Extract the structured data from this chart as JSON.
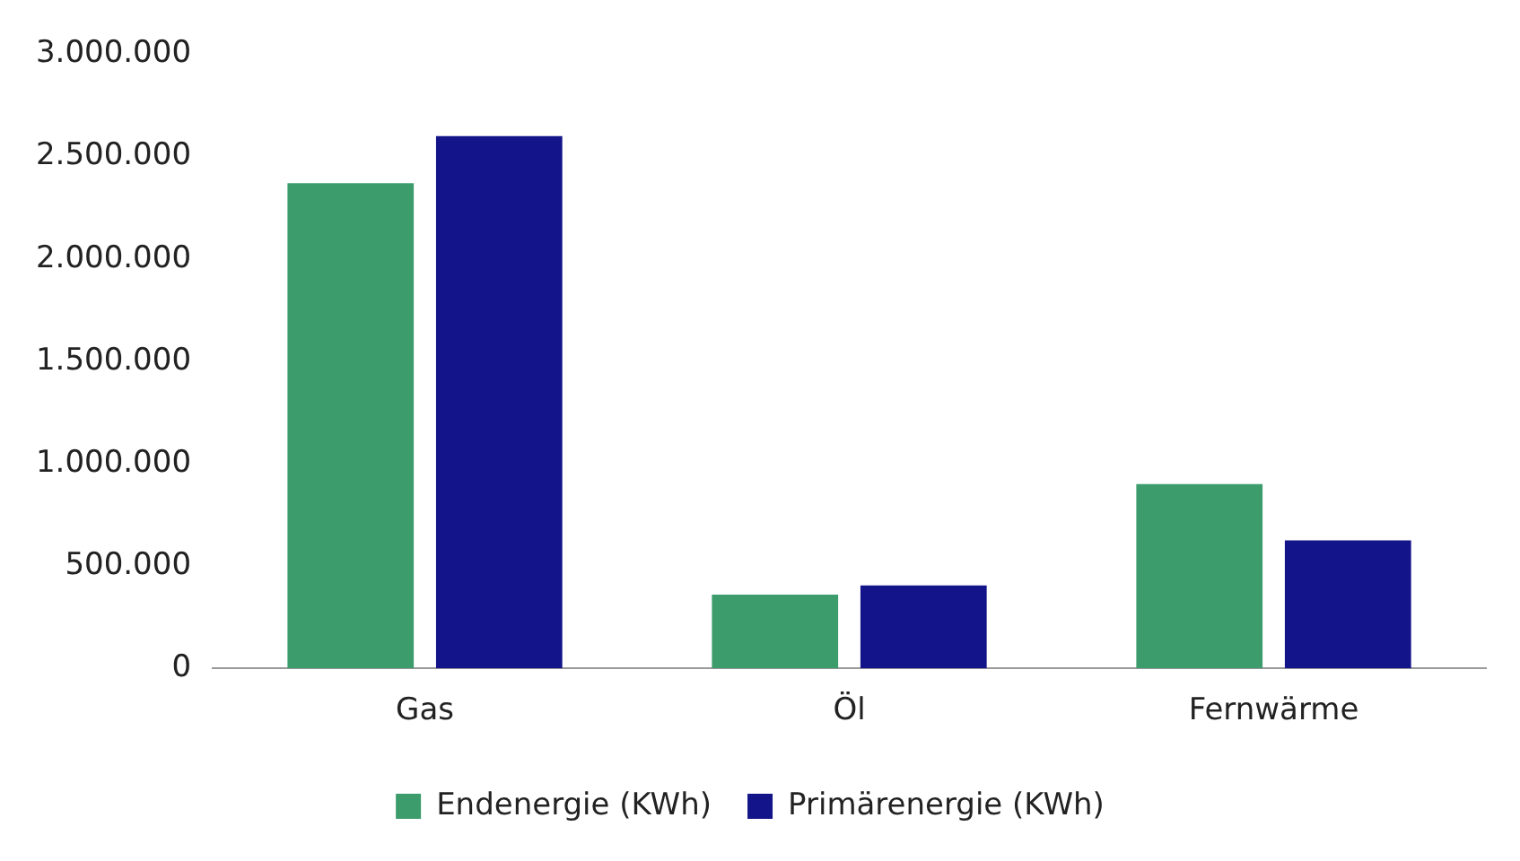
{
  "chart_data": {
    "type": "bar",
    "categories": [
      "Gas",
      "Öl",
      "Fernwärme"
    ],
    "series": [
      {
        "name": "Endenergie (KWh)",
        "color": "#3c9c6c",
        "values": [
          2370000,
          360000,
          900000
        ]
      },
      {
        "name": "Primärenergie (KWh)",
        "color": "#14148a",
        "values": [
          2600000,
          405000,
          625000
        ]
      }
    ],
    "ylim": [
      0,
      3000000
    ],
    "yticks": [
      {
        "value": 0,
        "label": "0"
      },
      {
        "value": 500000,
        "label": "500.000"
      },
      {
        "value": 1000000,
        "label": "1.000.000"
      },
      {
        "value": 1500000,
        "label": "1.500.000"
      },
      {
        "value": 2000000,
        "label": "2.000.000"
      },
      {
        "value": 2500000,
        "label": "2.500.000"
      },
      {
        "value": 3000000,
        "label": "3.000.000"
      }
    ],
    "grid": false,
    "legend": "bottom"
  }
}
